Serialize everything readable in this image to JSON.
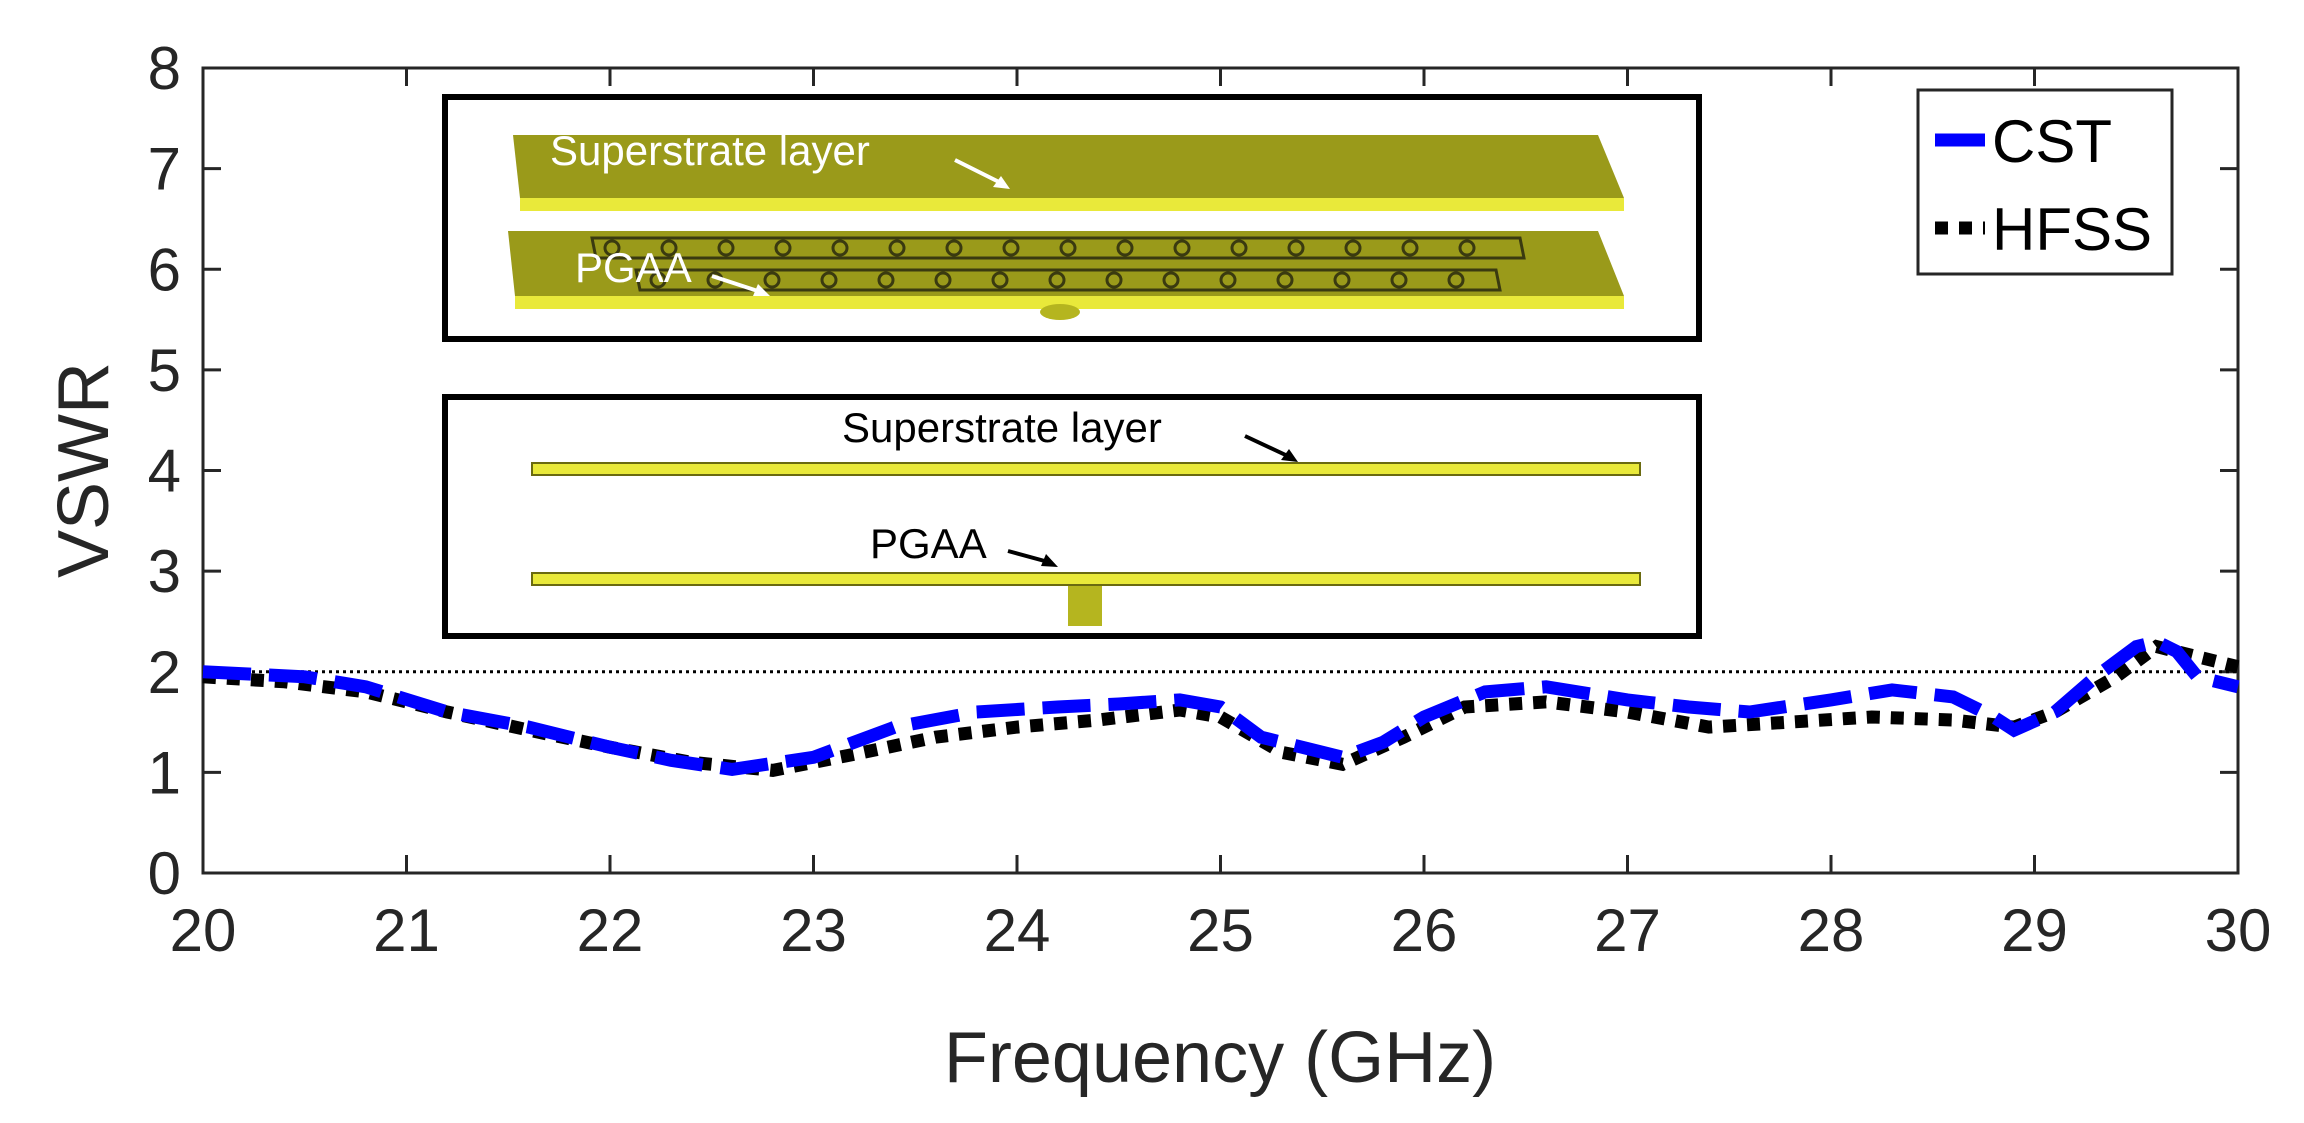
{
  "chart_data": {
    "type": "line",
    "title": "",
    "xlabel": "Frequency (GHz)",
    "ylabel": "VSWR",
    "xlim": [
      20,
      30
    ],
    "ylim": [
      0,
      8
    ],
    "xticks": [
      "20",
      "21",
      "22",
      "23",
      "24",
      "25",
      "26",
      "27",
      "28",
      "29",
      "30"
    ],
    "yticks": [
      "0",
      "1",
      "2",
      "3",
      "4",
      "5",
      "6",
      "7",
      "8"
    ],
    "grid": false,
    "legend_position": "top-right",
    "reference_line": {
      "y": 2
    },
    "series": [
      {
        "name": "CST",
        "color": "#0000ff",
        "style": "dashed",
        "x": [
          20.0,
          20.5,
          20.8,
          21.2,
          21.6,
          22.0,
          22.3,
          22.6,
          23.0,
          23.4,
          23.8,
          24.2,
          24.5,
          24.8,
          25.0,
          25.2,
          25.4,
          25.6,
          25.8,
          26.0,
          26.3,
          26.6,
          27.0,
          27.3,
          27.6,
          28.0,
          28.3,
          28.6,
          28.8,
          28.9,
          29.1,
          29.3,
          29.5,
          29.6,
          29.7,
          29.8,
          30.0
        ],
        "y": [
          2.0,
          1.95,
          1.85,
          1.6,
          1.45,
          1.25,
          1.12,
          1.03,
          1.15,
          1.45,
          1.6,
          1.65,
          1.68,
          1.72,
          1.65,
          1.35,
          1.25,
          1.15,
          1.3,
          1.55,
          1.8,
          1.85,
          1.72,
          1.65,
          1.6,
          1.72,
          1.82,
          1.75,
          1.55,
          1.42,
          1.6,
          1.95,
          2.25,
          2.3,
          2.2,
          1.95,
          1.85
        ]
      },
      {
        "name": "HFSS",
        "color": "#000000",
        "style": "dotted",
        "x": [
          20.0,
          20.4,
          20.8,
          21.2,
          21.6,
          22.0,
          22.4,
          22.8,
          23.2,
          23.6,
          24.0,
          24.4,
          24.8,
          25.0,
          25.3,
          25.6,
          25.9,
          26.2,
          26.6,
          27.0,
          27.4,
          27.8,
          28.2,
          28.6,
          28.9,
          29.1,
          29.4,
          29.6,
          29.8,
          30.0
        ],
        "y": [
          1.95,
          1.9,
          1.8,
          1.6,
          1.42,
          1.25,
          1.1,
          1.02,
          1.18,
          1.35,
          1.45,
          1.52,
          1.62,
          1.55,
          1.2,
          1.08,
          1.35,
          1.65,
          1.7,
          1.6,
          1.45,
          1.5,
          1.55,
          1.52,
          1.45,
          1.6,
          1.95,
          2.25,
          2.15,
          2.05
        ]
      }
    ]
  },
  "insets": {
    "top": {
      "label_superstrate": "Superstrate layer",
      "label_pgaa": "PGAA"
    },
    "bottom": {
      "label_superstrate": "Superstrate layer",
      "label_pgaa": "PGAA"
    }
  },
  "colors": {
    "axis": "#262626",
    "layer_dark": "#9a9a1a",
    "layer_light": "#e9e93a",
    "layer_side": "#c8c82a"
  }
}
